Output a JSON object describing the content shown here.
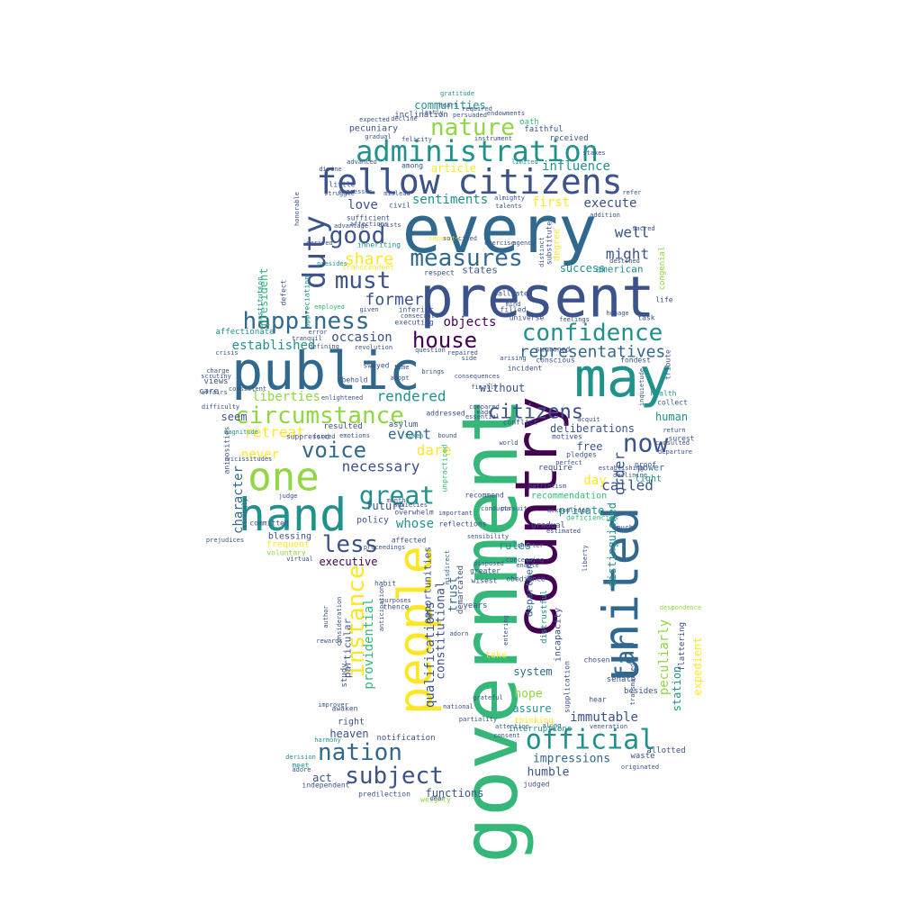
{
  "palette": {
    "background": "#ffffff",
    "dark_purple": "#440154",
    "indigo": "#3b528b",
    "blue": "#31688e",
    "teal": "#21918c",
    "green": "#35b779",
    "lime": "#90d743",
    "yellow": "#fde725"
  },
  "words": [
    "government",
    "country",
    "present",
    "every",
    "public",
    "may",
    "united",
    "people",
    "hand",
    "one",
    "fellow",
    "citizens",
    "duty",
    "administration",
    "nature",
    "happiness",
    "confidence",
    "must",
    "good",
    "measures",
    "circumstance",
    "voice",
    "great",
    "official",
    "nation",
    "subject",
    "instance",
    "less",
    "far",
    "now",
    "house",
    "representatives",
    "former",
    "objects",
    "share",
    "established",
    "occasion",
    "rendered",
    "retreat",
    "event",
    "necessary",
    "dare",
    "called",
    "never",
    "liberties",
    "seem",
    "president",
    "well",
    "might",
    "love",
    "sentiments",
    "first",
    "execute",
    "influence",
    "article",
    "communities",
    "inclination",
    "pecuniary",
    "endowments",
    "oath",
    "faithful",
    "received",
    "success",
    "american",
    "states",
    "deliberations",
    "free",
    "human",
    "citizens",
    "affectionate",
    "views",
    "care",
    "character",
    "future",
    "whose",
    "policy",
    "blessing",
    "executive",
    "rules",
    "trust",
    "constitutional",
    "qualifications",
    "opportunities",
    "particular",
    "providential",
    "heaven",
    "right",
    "awaken",
    "study",
    "notification",
    "impressions",
    "humble",
    "functions",
    "weighty",
    "predilection",
    "independent",
    "act",
    "immutable",
    "assure",
    "hope",
    "system",
    "chosen",
    "senate",
    "besides",
    "station",
    "peculiarly",
    "expedient",
    "flattering",
    "order",
    "private",
    "day",
    "recommendation",
    "distinguished",
    "department",
    "incapacity",
    "require",
    "light",
    "power",
    "proof",
    "collect",
    "health",
    "without",
    "incident",
    "conscious",
    "fondest",
    "arising",
    "gratitude",
    "heart",
    "lastly",
    "instrument",
    "advanced",
    "among",
    "divine",
    "little",
    "honorable",
    "civil",
    "almighty",
    "talents",
    "addition",
    "sufficient",
    "inheriting",
    "transcendent",
    "appreciation",
    "presides",
    "employed",
    "tranquil",
    "error",
    "defining",
    "swayed",
    "asylum",
    "forced",
    "month",
    "anxieties",
    "overwhelm",
    "committed",
    "suppressed",
    "vicissitudes",
    "magnitude",
    "affairs",
    "consistent",
    "difficulty",
    "resulted",
    "emotions",
    "token",
    "bound",
    "side",
    "repaired",
    "question",
    "brings",
    "time",
    "made",
    "addressed",
    "essential",
    "conflict",
    "motives",
    "pledges",
    "perfect",
    "establishing",
    "patriotism",
    "acknowledge",
    "declining",
    "return",
    "surest",
    "mind",
    "feelings",
    "honage",
    "filled",
    "universe",
    "palliated",
    "summoned",
    "task",
    "life",
    "inferior",
    "consecrate",
    "tribute",
    "behold",
    "enlightened",
    "consequences",
    "judge",
    "prejudices",
    "animosities",
    "constitution",
    "defect",
    "frequent",
    "voluntary",
    "virtual",
    "habit",
    "purposes",
    "thence",
    "adorn",
    "years",
    "greater",
    "wisest",
    "obedience",
    "enable",
    "charter",
    "gradual",
    "deficiencies",
    "estimated",
    "much",
    "conducts",
    "pursuit",
    "recommend",
    "reflections",
    "important",
    "affected",
    "disposed",
    "misdirect",
    "distrustful",
    "supplication",
    "transmitted",
    "despondence",
    "originated",
    "allotted",
    "waste",
    "hear",
    "veneration",
    "along",
    "attention",
    "thinking",
    "take",
    "grateful",
    "partiality",
    "consent",
    "judged",
    "dear",
    "adore",
    "meet",
    "derision",
    "author",
    "consideration",
    "anticipation",
    "proceedings",
    "entering",
    "unpracticed",
    "sensibility",
    "national",
    "harmony",
    "improver",
    "rewards",
    "concerning",
    "gradual",
    "felicity",
    "persuaded",
    "decline",
    "expected",
    "required",
    "stakes",
    "refer",
    "limited",
    "expresses",
    "struggle",
    "exists",
    "mislead",
    "affections",
    "advantage",
    "derived",
    "respect",
    "executing",
    "revolution",
    "adopt",
    "charge",
    "crisis",
    "compared",
    "demarcated",
    "interruptions",
    "scrutiny",
    "finally",
    "world",
    "liberty",
    "sacred",
    "destined",
    "agency",
    "congenial",
    "strongly",
    "departure",
    "consulted",
    "acquit",
    "inquietude",
    "exercise",
    "substitute",
    "distinct",
    "degree",
    "separate",
    "solicited",
    "given",
    "either",
    "compensation",
    "benediction"
  ]
}
